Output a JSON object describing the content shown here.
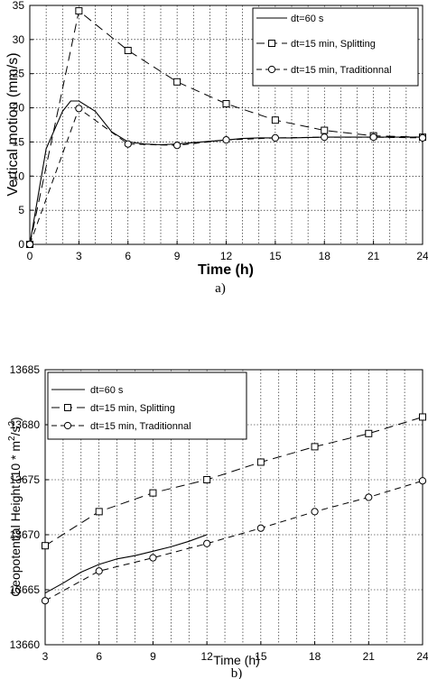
{
  "chart_data": [
    {
      "type": "line",
      "panel_label": "a)",
      "xlabel": "Time  (h)",
      "ylabel": "Vertical  motion  (mm/s)",
      "xlim": [
        0,
        24
      ],
      "ylim": [
        0,
        35
      ],
      "xticks": [
        0,
        3,
        6,
        9,
        12,
        15,
        18,
        21,
        24
      ],
      "yticks": [
        0,
        5,
        10,
        15,
        20,
        25,
        30,
        35
      ],
      "grid": true,
      "legend_position": "top-right",
      "series": [
        {
          "name": "dt=60  s",
          "style": "solid",
          "marker": "none",
          "x": [
            0,
            1,
            2,
            2.5,
            3,
            4,
            5,
            6,
            7,
            8,
            9,
            10,
            11,
            12,
            13,
            14,
            15,
            16,
            18,
            20,
            22,
            24
          ],
          "y": [
            0,
            14,
            19.5,
            21,
            21,
            19.5,
            16.5,
            15,
            14.7,
            14.6,
            14.7,
            14.9,
            15.1,
            15.3,
            15.5,
            15.6,
            15.6,
            15.6,
            15.7,
            15.7,
            15.7,
            15.7
          ]
        },
        {
          "name": "dt=15  min,  Splitting",
          "style": "long-dash",
          "marker": "square",
          "x": [
            0,
            3,
            6,
            9,
            12,
            15,
            18,
            21,
            24
          ],
          "y": [
            0,
            34.2,
            28.4,
            23.8,
            20.6,
            18.2,
            16.7,
            15.9,
            15.7
          ]
        },
        {
          "name": "dt=15  min,  Traditionnal",
          "style": "dash",
          "marker": "circle",
          "x": [
            0,
            3,
            6,
            9,
            12,
            15,
            18,
            21,
            24
          ],
          "y": [
            0,
            19.9,
            14.7,
            14.5,
            15.3,
            15.6,
            15.7,
            15.7,
            15.6
          ]
        }
      ]
    },
    {
      "type": "line",
      "panel_label": "b)",
      "xlabel": "Time  (h)",
      "ylabel": "Geopotential  Height  (10 * m²/s²)",
      "xlim": [
        3,
        24
      ],
      "ylim": [
        13660,
        13685
      ],
      "xticks": [
        3,
        6,
        9,
        12,
        15,
        18,
        21,
        24
      ],
      "yticks": [
        13660,
        13665,
        13670,
        13675,
        13680,
        13685
      ],
      "grid": true,
      "legend_position": "top-left",
      "series": [
        {
          "name": "dt=60  s",
          "style": "solid",
          "marker": "none",
          "x": [
            3,
            4,
            5,
            6,
            7,
            8,
            9,
            10,
            11,
            12
          ],
          "y": [
            13664.7,
            13665.6,
            13666.6,
            13667.3,
            13667.8,
            13668.1,
            13668.5,
            13668.9,
            13669.4,
            13670.0
          ]
        },
        {
          "name": "dt=15  min,  Splitting",
          "style": "long-dash",
          "marker": "square",
          "x": [
            3,
            6,
            9,
            12,
            15,
            18,
            21,
            24
          ],
          "y": [
            13669.0,
            13672.1,
            13673.8,
            13675.0,
            13676.6,
            13678.0,
            13679.2,
            13680.7
          ]
        },
        {
          "name": "dt=15  min,  Traditionnal",
          "style": "dash",
          "marker": "circle",
          "x": [
            3,
            6,
            9,
            12,
            15,
            18,
            21,
            24
          ],
          "y": [
            13664.0,
            13666.7,
            13667.9,
            13669.2,
            13670.6,
            13672.1,
            13673.4,
            13674.9
          ]
        }
      ]
    }
  ],
  "text": {
    "panel_a_label": "a)",
    "panel_b_label": "b)",
    "a_xlabel": "Time  (h)",
    "a_ylabel": "Vertical  motion  (mm/s)",
    "b_xlabel": "Time  (h)",
    "b_ylabel_main": "Geopotential  Height  (10  *  m",
    "b_ylabel_mid": "/s",
    "b_ylabel_end": ")",
    "b_ylabel_sup": "2",
    "legend_a": [
      "dt=60  s",
      "dt=15  min,  Splitting",
      "dt=15  min,  Traditionnal"
    ],
    "legend_b": [
      "dt=60  s",
      "dt=15  min,  Splitting",
      "dt=15  min,  Traditionnal"
    ]
  }
}
